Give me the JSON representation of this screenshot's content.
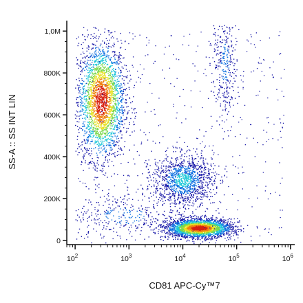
{
  "chart_data": {
    "type": "scatter",
    "subtype": "flow-cytometry-density-dot-plot",
    "title": "",
    "xlabel": "CD81 APC-Cy™7",
    "ylabel": "SS-A :: SS INT LIN",
    "x_scale": "log",
    "y_scale": "linear",
    "xlim": [
      70,
      1200000
    ],
    "ylim": [
      -20000,
      1050000
    ],
    "grid": false,
    "legend": "none",
    "x_ticks": [
      {
        "value": 100,
        "base": "10",
        "exp": "2"
      },
      {
        "value": 1000,
        "base": "10",
        "exp": "3"
      },
      {
        "value": 10000,
        "base": "10",
        "exp": "4"
      },
      {
        "value": 100000,
        "base": "10",
        "exp": "5"
      },
      {
        "value": 1000000,
        "base": "10",
        "exp": "6"
      }
    ],
    "y_ticks": [
      {
        "value": 0,
        "label": "0"
      },
      {
        "value": 200000,
        "label": "200K"
      },
      {
        "value": 400000,
        "label": "400K"
      },
      {
        "value": 600000,
        "label": "600K"
      },
      {
        "value": 800000,
        "label": "800K"
      },
      {
        "value": 1000000,
        "label": "1,0M"
      }
    ],
    "density_colormap": [
      "#1a1aa8",
      "#0a6ee0",
      "#20c8d8",
      "#7ad84a",
      "#e8e020",
      "#f08010",
      "#d82010"
    ],
    "populations": [
      {
        "center_x": 300,
        "center_y": 670000,
        "log_spread_x": 0.22,
        "spread_y": 140000,
        "density": "high"
      },
      {
        "center_x": 20000,
        "center_y": 60000,
        "log_spread_x": 0.3,
        "spread_y": 22000,
        "density": "high"
      },
      {
        "center_x": 10000,
        "center_y": 290000,
        "log_spread_x": 0.28,
        "spread_y": 60000,
        "density": "medium"
      },
      {
        "center_x": 60000,
        "center_y": 850000,
        "log_spread_x": 0.12,
        "spread_y": 150000,
        "density": "low"
      },
      {
        "center_x": 800,
        "center_y": 120000,
        "log_spread_x": 0.6,
        "spread_y": 60000,
        "density": "low"
      }
    ]
  }
}
